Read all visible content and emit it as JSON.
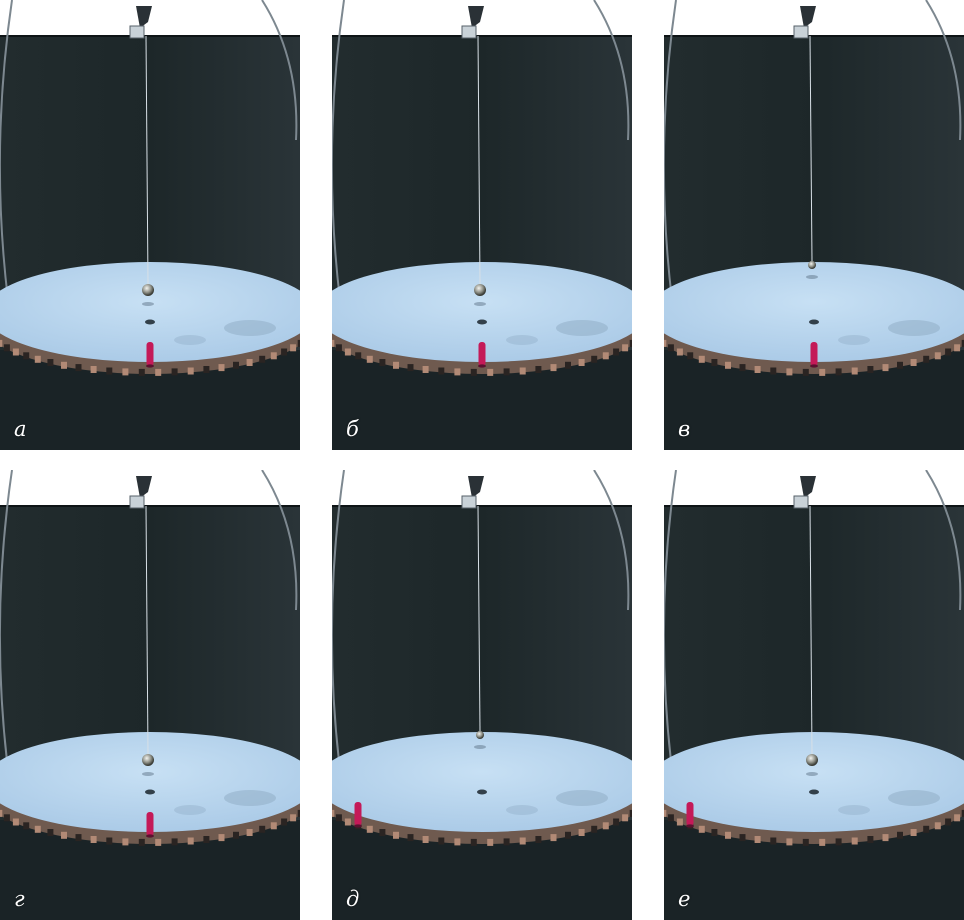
{
  "panels": [
    {
      "label": "а",
      "ball": {
        "height_above_table": "low",
        "swing": "none"
      },
      "pin_visible": "center"
    },
    {
      "label": "б",
      "ball": {
        "height_above_table": "low",
        "swing": "none"
      },
      "pin_visible": "center"
    },
    {
      "label": "в",
      "ball": {
        "height_above_table": "high",
        "swing": "none"
      },
      "pin_visible": "center"
    },
    {
      "label": "г",
      "ball": {
        "height_above_table": "low",
        "swing": "none"
      },
      "pin_visible": "center"
    },
    {
      "label": "д",
      "ball": {
        "height_above_table": "high",
        "swing": "none"
      },
      "pin_visible": "left"
    },
    {
      "label": "е",
      "ball": {
        "height_above_table": "low",
        "swing": "none"
      },
      "pin_visible": "left"
    }
  ],
  "colors": {
    "backdrop": "#1d2729",
    "table_top": "#a9c9e6",
    "table_rim": "#6f5a4f",
    "pin": "#c41a58",
    "thread": "#d8e0e6",
    "label": "#ffffff"
  }
}
